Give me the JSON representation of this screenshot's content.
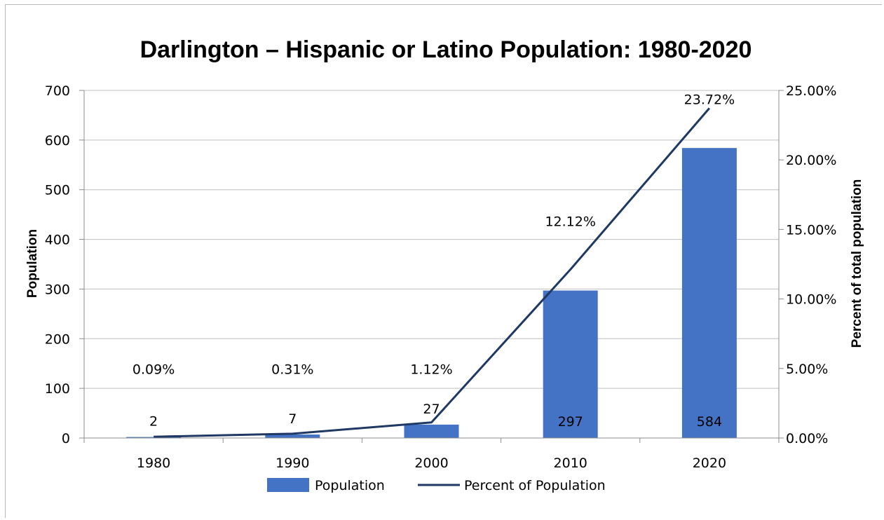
{
  "chart_data": {
    "type": "bar",
    "title": "Darlington – Hispanic or Latino Population: 1980-2020",
    "categories": [
      "1980",
      "1990",
      "2000",
      "2010",
      "2020"
    ],
    "series": [
      {
        "name": "Population",
        "type": "bar",
        "axis": "left",
        "color": "#4472c4",
        "values": [
          2,
          7,
          27,
          297,
          584
        ],
        "labels": [
          "2",
          "7",
          "27",
          "297",
          "584"
        ]
      },
      {
        "name": "Percent of Population",
        "type": "line",
        "axis": "right",
        "color": "#1f3864",
        "values": [
          0.09,
          0.31,
          1.12,
          12.12,
          23.72
        ],
        "labels": [
          "0.09%",
          "0.31%",
          "1.12%",
          "12.12%",
          "23.72%"
        ]
      }
    ],
    "ylabel": "Population",
    "ylim": [
      0,
      700
    ],
    "yticks": [
      "0",
      "100",
      "200",
      "300",
      "400",
      "500",
      "600",
      "700"
    ],
    "y2label": "Percent of total population",
    "y2lim": [
      0,
      25
    ],
    "y2ticks": [
      "0.00%",
      "5.00%",
      "10.00%",
      "15.00%",
      "20.00%",
      "25.00%"
    ],
    "grid": true,
    "legend_position": "bottom"
  }
}
